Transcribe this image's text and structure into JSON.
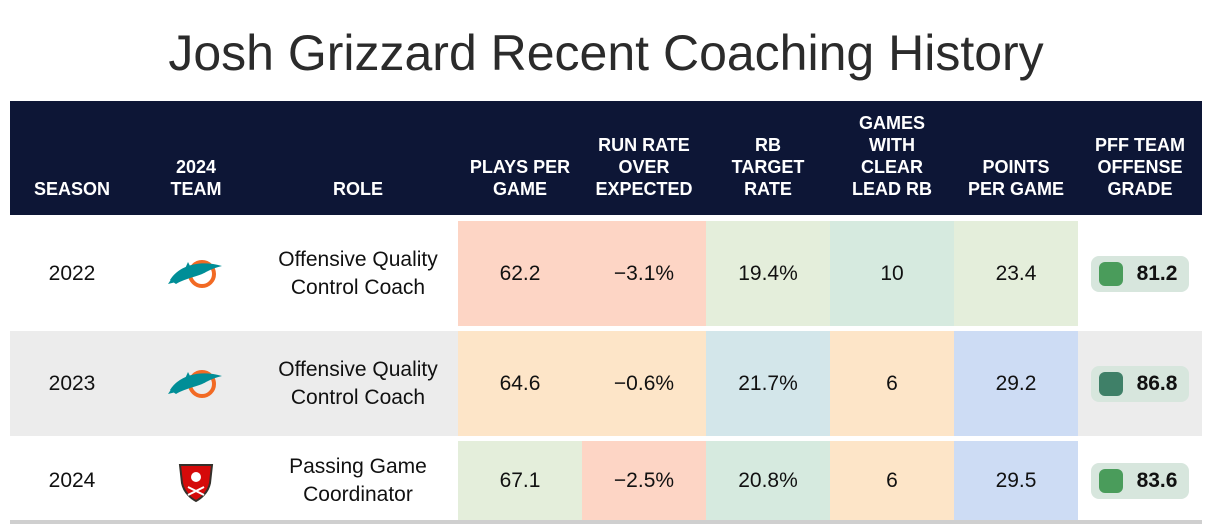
{
  "title": "Josh Grizzard Recent Coaching History",
  "columns": {
    "season": "SEASON",
    "team": "2024\nTEAM",
    "role": "ROLE",
    "plays": "PLAYS PER\nGAME",
    "rroe": "RUN RATE\nOVER\nEXPECTED",
    "rb_target": "RB\nTARGET\nRATE",
    "lead_rb": "GAMES\nWITH\nCLEAR\nLEAD RB",
    "ppg": "POINTS\nPER GAME",
    "grade": "PFF TEAM\nOFFENSE\nGRADE"
  },
  "rows": [
    {
      "season": "2022",
      "team_icon": "dolphins-logo-icon",
      "role": "Offensive Quality Control Coach",
      "plays": "62.2",
      "rroe": "−3.1%",
      "rb_target": "19.4%",
      "lead_rb": "10",
      "ppg": "23.4",
      "grade": "81.2",
      "colors": {
        "plays": "#fdd5c5",
        "rroe": "#fdd5c5",
        "rb_target": "#e4eedb",
        "lead_rb": "#d6eadf",
        "ppg": "#e4eedb",
        "grade": "#4a9c5b"
      }
    },
    {
      "season": "2023",
      "team_icon": "dolphins-logo-icon",
      "role": "Offensive Quality Control Coach",
      "plays": "64.6",
      "rroe": "−0.6%",
      "rb_target": "21.7%",
      "lead_rb": "6",
      "ppg": "29.2",
      "grade": "86.8",
      "colors": {
        "plays": "#fde5c8",
        "rroe": "#fde5c8",
        "rb_target": "#d3e6ea",
        "lead_rb": "#fde5c8",
        "ppg": "#cddcf4",
        "grade": "#3f8068"
      }
    },
    {
      "season": "2024",
      "team_icon": "buccaneers-logo-icon",
      "role": "Passing Game Coordinator",
      "plays": "67.1",
      "rroe": "−2.5%",
      "rb_target": "20.8%",
      "lead_rb": "6",
      "ppg": "29.5",
      "grade": "83.6",
      "colors": {
        "plays": "#e4eedb",
        "rroe": "#fdd5c5",
        "rb_target": "#d6eadf",
        "lead_rb": "#fde5c8",
        "ppg": "#cddcf4",
        "grade": "#4a9c5b"
      }
    }
  ]
}
